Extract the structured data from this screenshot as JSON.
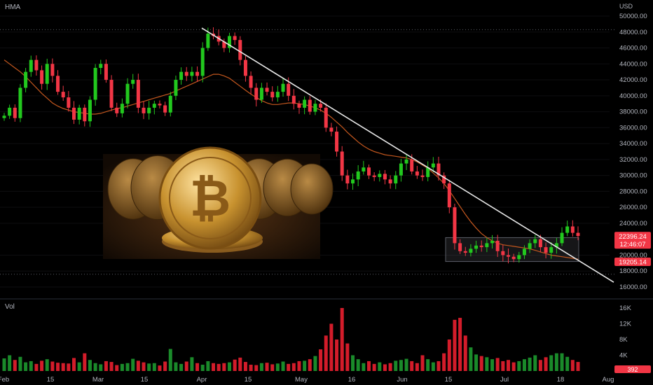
{
  "indicator_label": "HMA",
  "volume_label": "Vol",
  "currency": "USD",
  "price_axis": {
    "min": 16000,
    "max": 50000,
    "ticks": [
      "50000.00",
      "48000.00",
      "46000.00",
      "44000.00",
      "42000.00",
      "40000.00",
      "38000.00",
      "36000.00",
      "34000.00",
      "32000.00",
      "30000.00",
      "28000.00",
      "26000.00",
      "24000.00",
      "20000.00",
      "18000.00",
      "16000.00"
    ]
  },
  "volume_axis": {
    "ticks": [
      "16K",
      "12K",
      "8K",
      "4K"
    ]
  },
  "time_axis": {
    "labels": [
      "Feb",
      "15",
      "Mar",
      "15",
      "Apr",
      "15",
      "May",
      "16",
      "Jun",
      "15",
      "Jul",
      "18",
      "Aug"
    ]
  },
  "badges": {
    "last_price": "22396.24",
    "countdown": "12:46:07",
    "support_price": "19205.14",
    "volume_last": "392",
    "last_color": "#f23645",
    "support_color": "#f23645"
  },
  "colors": {
    "up": "#089981",
    "up_bright": "#22c81e",
    "down": "#f23645",
    "ma": "#c4571e",
    "trend": "#e8e8e8"
  },
  "image": {
    "subject": "bitcoin-coins-image"
  },
  "chart_data": {
    "type": "candlestick",
    "title": "",
    "ylabel": "USD",
    "ylim": [
      16000,
      50000
    ],
    "ma_name": "HMA",
    "close": [
      37500,
      38500,
      37200,
      41000,
      43000,
      44500,
      43200,
      41500,
      44000,
      42500,
      40500,
      39800,
      38500,
      37000,
      38500,
      36800,
      39500,
      43500,
      44000,
      42000,
      38500,
      37800,
      39000,
      41500,
      42000,
      38500,
      37800,
      38500,
      39000,
      38800,
      37900,
      40000,
      42000,
      43000,
      42500,
      43000,
      42500,
      46000,
      47800,
      47500,
      46800,
      46000,
      47500,
      47000,
      44500,
      42500,
      41000,
      39500,
      41000,
      40500,
      39800,
      40500,
      41500,
      40000,
      39000,
      38500,
      39500,
      38000,
      39000,
      38500,
      36000,
      35500,
      33000,
      30000,
      29000,
      29500,
      30500,
      31000,
      30000,
      29800,
      30200,
      29500,
      29000,
      30000,
      31500,
      32000,
      30500,
      30000,
      29800,
      31000,
      31500,
      30000,
      29000,
      26000,
      21500,
      20500,
      20300,
      20800,
      21200,
      21000,
      21500,
      21800,
      20500,
      20000,
      19800,
      19500,
      20000,
      20800,
      21500,
      22000,
      21000,
      20300,
      21000,
      21500,
      22800,
      23600,
      22800,
      22396
    ],
    "ma": [
      44500,
      44000,
      43500,
      43000,
      42400,
      41700,
      41000,
      40300,
      39700,
      39100,
      38700,
      38400,
      38200,
      38000,
      37900,
      37800,
      37700,
      37700,
      37800,
      38000,
      38200,
      38400,
      38500,
      38700,
      38900,
      39100,
      39300,
      39500,
      39700,
      39900,
      40100,
      40300,
      40600,
      40900,
      41200,
      41500,
      41800,
      42100,
      42400,
      42700,
      42700,
      42500,
      42200,
      41700,
      41200,
      40700,
      40200,
      39800,
      39400,
      39100,
      38900,
      38900,
      39000,
      39100,
      39100,
      39000,
      38900,
      38700,
      38500,
      38200,
      37800,
      37300,
      36700,
      36100,
      35400,
      34800,
      34200,
      33700,
      33300,
      33000,
      32800,
      32600,
      32500,
      32400,
      32300,
      32200,
      32000,
      31700,
      31300,
      30900,
      30300,
      29700,
      29000,
      28100,
      27100,
      26100,
      25100,
      24200,
      23400,
      22700,
      22200,
      21800,
      21500,
      21300,
      21200,
      21100,
      21000,
      20900,
      20800,
      20600,
      20400,
      20200,
      20000,
      19900,
      19800,
      19700,
      19600,
      19500
    ],
    "trendline": {
      "start": {
        "date": "Mar 30",
        "price": 48500
      },
      "end": {
        "date": "Aug 1",
        "price": 16600
      }
    },
    "support_level": 17600,
    "resistance_level": 48300,
    "consolidation_box": {
      "from": "Jun 16",
      "to": "Jul 24",
      "low": 19200,
      "high": 22200
    },
    "volume": [
      3.2,
      4.0,
      2.8,
      3.6,
      2.2,
      2.5,
      1.8,
      2.6,
      3.0,
      2.4,
      2.1,
      2.0,
      1.9,
      3.3,
      2.2,
      4.5,
      2.8,
      2.0,
      1.7,
      2.5,
      2.3,
      1.5,
      1.8,
      2.0,
      3.1,
      2.6,
      2.2,
      1.9,
      2.0,
      1.4,
      2.4,
      5.6,
      2.2,
      1.8,
      2.4,
      3.5,
      2.0,
      1.6,
      2.5,
      2.0,
      1.8,
      2.0,
      2.2,
      2.9,
      3.4,
      2.3,
      1.6,
      1.5,
      2.0,
      2.1,
      1.7,
      1.9,
      2.4,
      1.8,
      2.0,
      2.5,
      2.6,
      3.0,
      3.8,
      5.5,
      9.0,
      12.0,
      8.0,
      16.0,
      7.0,
      4.0,
      3.0,
      2.0,
      2.5,
      1.8,
      2.2,
      1.7,
      2.0,
      2.6,
      2.8,
      3.1,
      2.5,
      2.0,
      4.0,
      3.0,
      2.2,
      2.5,
      4.5,
      8.0,
      13.0,
      13.5,
      9.0,
      6.0,
      4.2,
      3.8,
      3.5,
      3.0,
      3.3,
      2.5,
      2.8,
      2.2,
      2.5,
      3.0,
      3.4,
      4.0,
      2.8,
      3.5,
      4.0,
      4.5,
      4.5,
      3.6,
      2.8,
      2.3
    ],
    "x_labels": [
      "Feb",
      "15",
      "Mar",
      "15",
      "Apr",
      "15",
      "May",
      "16",
      "Jun",
      "15",
      "Jul",
      "18",
      "Aug"
    ]
  }
}
